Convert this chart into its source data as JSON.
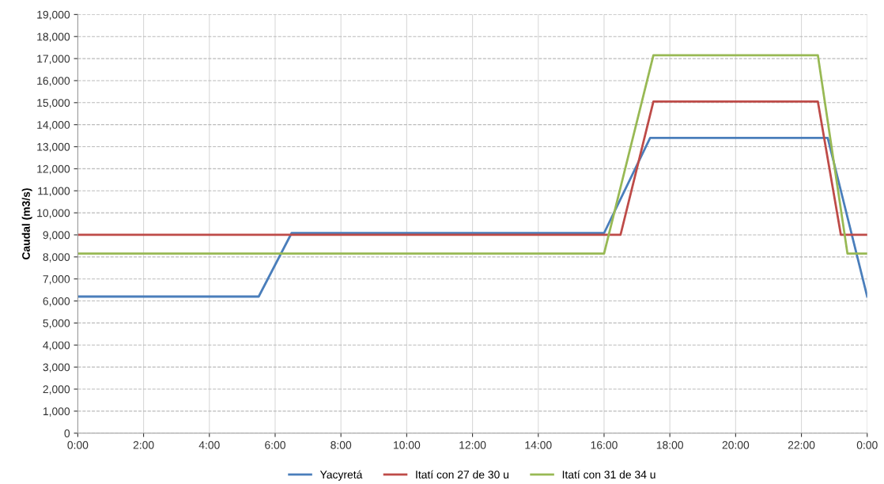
{
  "chart_data": {
    "type": "line",
    "ylabel": "Caudal (m3/s)",
    "xlim": [
      0,
      24
    ],
    "xticks": [
      {
        "value": 0,
        "label": "0:00"
      },
      {
        "value": 2,
        "label": "2:00"
      },
      {
        "value": 4,
        "label": "4:00"
      },
      {
        "value": 6,
        "label": "6:00"
      },
      {
        "value": 8,
        "label": "8:00"
      },
      {
        "value": 10,
        "label": "10:00"
      },
      {
        "value": 12,
        "label": "12:00"
      },
      {
        "value": 14,
        "label": "14:00"
      },
      {
        "value": 16,
        "label": "16:00"
      },
      {
        "value": 18,
        "label": "18:00"
      },
      {
        "value": 20,
        "label": "20:00"
      },
      {
        "value": 22,
        "label": "22:00"
      },
      {
        "value": 24,
        "label": "0:00"
      }
    ],
    "ylim": [
      0,
      19000
    ],
    "yticks": [
      {
        "value": 0,
        "label": "0"
      },
      {
        "value": 1000,
        "label": "1,000"
      },
      {
        "value": 2000,
        "label": "2,000"
      },
      {
        "value": 3000,
        "label": "3,000"
      },
      {
        "value": 4000,
        "label": "4,000"
      },
      {
        "value": 5000,
        "label": "5,000"
      },
      {
        "value": 6000,
        "label": "6,000"
      },
      {
        "value": 7000,
        "label": "7,000"
      },
      {
        "value": 8000,
        "label": "8,000"
      },
      {
        "value": 9000,
        "label": "9,000"
      },
      {
        "value": 10000,
        "label": "10,000"
      },
      {
        "value": 11000,
        "label": "11,000"
      },
      {
        "value": 12000,
        "label": "12,000"
      },
      {
        "value": 13000,
        "label": "13,000"
      },
      {
        "value": 14000,
        "label": "14,000"
      },
      {
        "value": 15000,
        "label": "15,000"
      },
      {
        "value": 16000,
        "label": "16,000"
      },
      {
        "value": 17000,
        "label": "17,000"
      },
      {
        "value": 18000,
        "label": "18,000"
      },
      {
        "value": 19000,
        "label": "19,000"
      }
    ],
    "grid": true,
    "legend": "bottom",
    "marker": "none",
    "line_style": "solid",
    "series": [
      {
        "name": "Yacyretá",
        "color": "#4a7ebb",
        "x": [
          0,
          5.5,
          6.5,
          16,
          17.4,
          22.8,
          24
        ],
        "values": [
          6200,
          6200,
          9080,
          9080,
          13400,
          13400,
          6200
        ]
      },
      {
        "name": "Itatí con 27 de 30 u",
        "color": "#be4b48",
        "x": [
          0,
          16.5,
          17.5,
          22.5,
          23.2,
          24
        ],
        "values": [
          9000,
          9000,
          15050,
          15050,
          9000,
          9000
        ]
      },
      {
        "name": "Itatí con 31 de 34 u",
        "color": "#98b954",
        "x": [
          0,
          16,
          17.5,
          22.5,
          23.4,
          24
        ],
        "values": [
          8150,
          8150,
          17150,
          17150,
          8150,
          8150
        ]
      }
    ]
  }
}
